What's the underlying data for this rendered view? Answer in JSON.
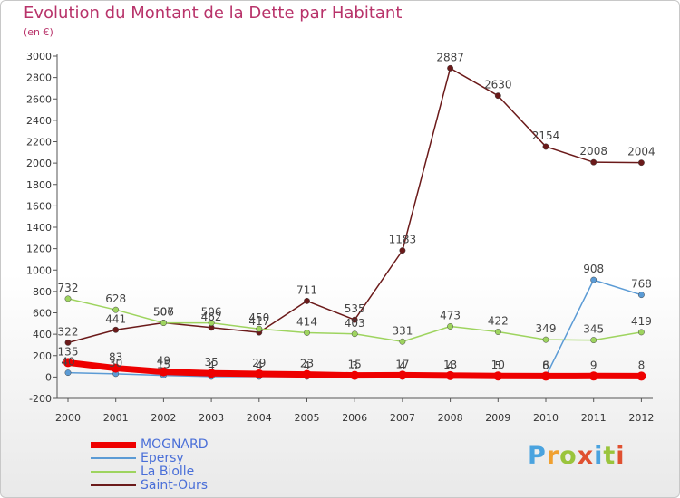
{
  "page": {
    "title": "Evolution du Montant de la Dette par Habitant",
    "unit": "(en €)",
    "logo": "Proxiti",
    "logo_colors": [
      "#4aa3df",
      "#f0a030",
      "#9ac43c",
      "#e05030",
      "#4aa3df",
      "#9ac43c",
      "#e05030"
    ]
  },
  "chart_data": {
    "type": "line",
    "title": "Evolution du Montant de la Dette par Habitant",
    "subtitle": "(en €)",
    "xlabel": "",
    "ylabel": "",
    "x": [
      "2000",
      "2001",
      "2002",
      "2003",
      "2004",
      "2005",
      "2006",
      "2007",
      "2008",
      "2009",
      "2010",
      "2011",
      "2012"
    ],
    "ylim": [
      -200,
      3000
    ],
    "yticks": [
      -200,
      0,
      200,
      400,
      600,
      800,
      1000,
      1200,
      1400,
      1600,
      1800,
      2000,
      2200,
      2400,
      2600,
      2800,
      3000
    ],
    "grid": false,
    "legend_position": "bottom-left",
    "series": [
      {
        "name": "MOGNARD",
        "color": "#ee0000",
        "width": 7,
        "values": [
          135,
          83,
          49,
          35,
          29,
          23,
          15,
          17,
          13,
          10,
          8,
          9,
          8
        ],
        "labels": [
          "135",
          "83",
          "49",
          "35",
          "29",
          "23",
          "15",
          "17",
          "13",
          "10",
          "8",
          "9",
          "8"
        ]
      },
      {
        "name": "Epersy",
        "color": "#5b9bd5",
        "width": 1.5,
        "values": [
          40,
          30,
          15,
          4,
          4,
          4,
          3,
          4,
          4,
          5,
          6,
          908,
          768
        ],
        "labels": [
          "40",
          "30",
          "15",
          "4",
          "4",
          "4",
          "3",
          "4",
          "4",
          "5",
          "6",
          "908",
          "768"
        ]
      },
      {
        "name": "La Biolle",
        "color": "#9ed45f",
        "width": 1.5,
        "values": [
          732,
          628,
          506,
          506,
          450,
          414,
          403,
          331,
          473,
          422,
          349,
          345,
          419
        ],
        "labels": [
          "732",
          "628",
          "506",
          "506",
          "450",
          "414",
          "403",
          "331",
          "473",
          "422",
          "349",
          "345",
          "419"
        ]
      },
      {
        "name": "Saint-Ours",
        "color": "#6b1a1a",
        "width": 1.5,
        "values": [
          322,
          441,
          507,
          462,
          417,
          711,
          535,
          1183,
          2887,
          2630,
          2154,
          2008,
          2004
        ],
        "labels": [
          "322",
          "441",
          "507",
          "462",
          "417",
          "711",
          "535",
          "1183",
          "2887",
          "2630",
          "2154",
          "2008",
          "2004"
        ]
      }
    ]
  }
}
